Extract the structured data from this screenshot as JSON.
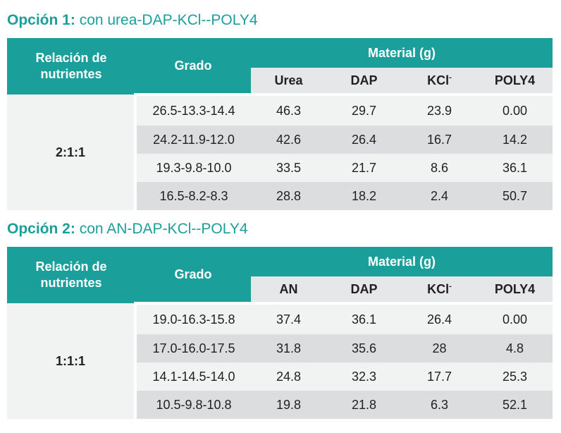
{
  "options": [
    {
      "label": "Opción 1:",
      "text": "con urea-DAP-KCl--POLY4",
      "header": {
        "ratio": "Relación de nutrientes",
        "grade": "Grado",
        "material": "Material (g)",
        "columns": [
          "Urea",
          "DAP",
          "KCl",
          "POLY4"
        ],
        "kcl_sup": "-"
      },
      "ratio_value": "2:1:1",
      "rows": [
        {
          "grade": "26.5-13.3-14.4",
          "values": [
            "46.3",
            "29.7",
            "23.9",
            "0.00"
          ]
        },
        {
          "grade": "24.2-11.9-12.0",
          "values": [
            "42.6",
            "26.4",
            "16.7",
            "14.2"
          ]
        },
        {
          "grade": "19.3-9.8-10.0",
          "values": [
            "33.5",
            "21.7",
            "8.6",
            "36.1"
          ]
        },
        {
          "grade": "16.5-8.2-8.3",
          "values": [
            "28.8",
            "18.2",
            "2.4",
            "50.7"
          ]
        }
      ]
    },
    {
      "label": "Opción 2:",
      "text": "con AN-DAP-KCl--POLY4",
      "header": {
        "ratio": "Relación de nutrientes",
        "grade": "Grado",
        "material": "Material (g)",
        "columns": [
          "AN",
          "DAP",
          "KCl",
          "POLY4"
        ],
        "kcl_sup": "-"
      },
      "ratio_value": "1:1:1",
      "rows": [
        {
          "grade": "19.0-16.3-15.8",
          "values": [
            "37.4",
            "36.1",
            "26.4",
            "0.00"
          ]
        },
        {
          "grade": "17.0-16.0-17.5",
          "values": [
            "31.8",
            "35.6",
            "28",
            "4.8"
          ]
        },
        {
          "grade": "14.1-14.5-14.0",
          "values": [
            "24.8",
            "32.3",
            "17.7",
            "25.3"
          ]
        },
        {
          "grade": "10.5-9.8-10.8",
          "values": [
            "19.8",
            "21.8",
            "6.3",
            "52.1"
          ]
        }
      ]
    }
  ],
  "colors": {
    "accent": "#1a9f9b",
    "header_sub": "#e6e7e8",
    "row_light": "#f1f2f2",
    "row_dark": "#dcdddf"
  }
}
